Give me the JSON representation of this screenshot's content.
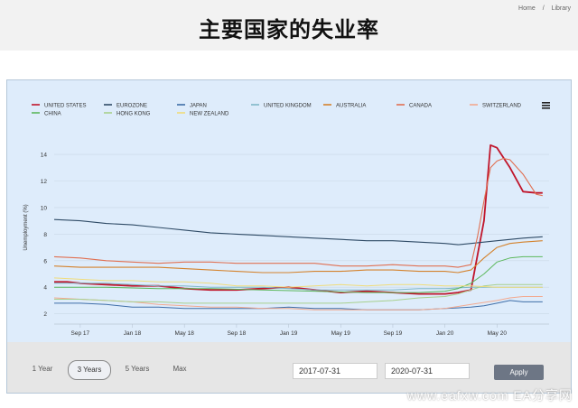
{
  "breadcrumb": {
    "home": "Home",
    "separator": "/",
    "library": "Library"
  },
  "page_title": "主要国家的失业率",
  "controls": {
    "ranges": [
      "1 Year",
      "3 Years",
      "5 Years",
      "Max"
    ],
    "active_range": "3 Years",
    "from_date": "2017-07-31",
    "to_date": "2020-07-31",
    "apply_label": "Apply"
  },
  "watermark": "www.eafxw.com EA分享网",
  "chart_data": {
    "type": "line",
    "title": "",
    "ylabel": "Unemployment (%)",
    "xlabel": "",
    "ylim": [
      1.5,
      15.5
    ],
    "yticks": [
      2,
      4,
      6,
      8,
      10,
      12,
      14
    ],
    "grid": "horizontal",
    "legend_position": "top",
    "xticks": [
      {
        "label": "Sep 17",
        "x": 2
      },
      {
        "label": "Jan 18",
        "x": 6
      },
      {
        "label": "May 18",
        "x": 10
      },
      {
        "label": "Sep 18",
        "x": 14
      },
      {
        "label": "Jan 19",
        "x": 18
      },
      {
        "label": "May 19",
        "x": 22
      },
      {
        "label": "Sep 19",
        "x": 26
      },
      {
        "label": "Jan 20",
        "x": 30
      },
      {
        "label": "May 20",
        "x": 34
      }
    ],
    "xlim": [
      0,
      38
    ],
    "series": [
      {
        "name": "UNITED STATES",
        "color": "#c0152b",
        "width": 1.8,
        "points": [
          [
            0,
            4.4
          ],
          [
            1,
            4.4
          ],
          [
            2,
            4.3
          ],
          [
            4,
            4.2
          ],
          [
            6,
            4.1
          ],
          [
            8,
            4.1
          ],
          [
            10,
            3.9
          ],
          [
            12,
            3.8
          ],
          [
            14,
            3.8
          ],
          [
            16,
            3.9
          ],
          [
            18,
            4.0
          ],
          [
            20,
            3.8
          ],
          [
            22,
            3.6
          ],
          [
            24,
            3.7
          ],
          [
            26,
            3.6
          ],
          [
            28,
            3.5
          ],
          [
            30,
            3.5
          ],
          [
            31,
            3.6
          ],
          [
            32,
            3.8
          ],
          [
            33,
            9.0
          ],
          [
            33.5,
            14.7
          ],
          [
            34,
            14.5
          ],
          [
            35,
            13.0
          ],
          [
            36,
            11.2
          ],
          [
            37,
            11.1
          ],
          [
            37.5,
            11.1
          ]
        ]
      },
      {
        "name": "EUROZONE",
        "color": "#2f4b66",
        "width": 1.1,
        "points": [
          [
            0,
            9.1
          ],
          [
            2,
            9.0
          ],
          [
            4,
            8.8
          ],
          [
            6,
            8.7
          ],
          [
            8,
            8.5
          ],
          [
            10,
            8.3
          ],
          [
            12,
            8.1
          ],
          [
            14,
            8.0
          ],
          [
            16,
            7.9
          ],
          [
            18,
            7.8
          ],
          [
            20,
            7.7
          ],
          [
            22,
            7.6
          ],
          [
            24,
            7.5
          ],
          [
            26,
            7.5
          ],
          [
            28,
            7.4
          ],
          [
            30,
            7.3
          ],
          [
            31,
            7.2
          ],
          [
            32,
            7.3
          ],
          [
            34,
            7.5
          ],
          [
            36,
            7.7
          ],
          [
            37.5,
            7.8
          ]
        ]
      },
      {
        "name": "JAPAN",
        "color": "#3f6ea8",
        "width": 1.0,
        "points": [
          [
            0,
            2.8
          ],
          [
            2,
            2.8
          ],
          [
            4,
            2.7
          ],
          [
            6,
            2.5
          ],
          [
            8,
            2.5
          ],
          [
            10,
            2.4
          ],
          [
            12,
            2.4
          ],
          [
            14,
            2.4
          ],
          [
            16,
            2.4
          ],
          [
            18,
            2.5
          ],
          [
            20,
            2.4
          ],
          [
            22,
            2.4
          ],
          [
            24,
            2.3
          ],
          [
            26,
            2.3
          ],
          [
            28,
            2.3
          ],
          [
            30,
            2.4
          ],
          [
            32,
            2.5
          ],
          [
            33,
            2.6
          ],
          [
            34,
            2.8
          ],
          [
            35,
            3.0
          ],
          [
            36,
            2.9
          ],
          [
            37.5,
            2.9
          ]
        ]
      },
      {
        "name": "UNITED KINGDOM",
        "color": "#7fb8c8",
        "width": 1.0,
        "points": [
          [
            0,
            4.3
          ],
          [
            2,
            4.3
          ],
          [
            4,
            4.3
          ],
          [
            6,
            4.2
          ],
          [
            8,
            4.1
          ],
          [
            10,
            4.1
          ],
          [
            12,
            4.0
          ],
          [
            14,
            4.0
          ],
          [
            16,
            4.0
          ],
          [
            18,
            3.9
          ],
          [
            20,
            3.8
          ],
          [
            22,
            3.8
          ],
          [
            24,
            3.8
          ],
          [
            26,
            3.8
          ],
          [
            28,
            3.9
          ],
          [
            30,
            3.9
          ],
          [
            32,
            4.0
          ],
          [
            34,
            4.0
          ],
          [
            36,
            4.0
          ],
          [
            37.5,
            4.0
          ]
        ]
      },
      {
        "name": "AUSTRALIA",
        "color": "#d4822c",
        "width": 1.1,
        "points": [
          [
            0,
            5.6
          ],
          [
            2,
            5.5
          ],
          [
            4,
            5.5
          ],
          [
            6,
            5.5
          ],
          [
            8,
            5.5
          ],
          [
            10,
            5.4
          ],
          [
            12,
            5.3
          ],
          [
            14,
            5.2
          ],
          [
            16,
            5.1
          ],
          [
            18,
            5.1
          ],
          [
            20,
            5.2
          ],
          [
            22,
            5.2
          ],
          [
            24,
            5.3
          ],
          [
            26,
            5.3
          ],
          [
            28,
            5.2
          ],
          [
            30,
            5.2
          ],
          [
            31,
            5.1
          ],
          [
            32,
            5.3
          ],
          [
            33,
            6.2
          ],
          [
            34,
            7.0
          ],
          [
            35,
            7.3
          ],
          [
            36,
            7.4
          ],
          [
            37.5,
            7.5
          ]
        ]
      },
      {
        "name": "CANADA",
        "color": "#e07052",
        "width": 1.1,
        "points": [
          [
            0,
            6.3
          ],
          [
            2,
            6.2
          ],
          [
            4,
            6.0
          ],
          [
            6,
            5.9
          ],
          [
            8,
            5.8
          ],
          [
            10,
            5.9
          ],
          [
            12,
            5.9
          ],
          [
            14,
            5.8
          ],
          [
            16,
            5.8
          ],
          [
            18,
            5.8
          ],
          [
            20,
            5.8
          ],
          [
            22,
            5.6
          ],
          [
            24,
            5.6
          ],
          [
            26,
            5.7
          ],
          [
            28,
            5.6
          ],
          [
            30,
            5.6
          ],
          [
            31,
            5.5
          ],
          [
            32,
            5.7
          ],
          [
            32.5,
            7.8
          ],
          [
            33,
            10.5
          ],
          [
            33.5,
            13.0
          ],
          [
            34,
            13.5
          ],
          [
            34.5,
            13.7
          ],
          [
            35,
            13.6
          ],
          [
            36,
            12.5
          ],
          [
            37,
            11.0
          ],
          [
            37.5,
            10.9
          ]
        ]
      },
      {
        "name": "SWITZERLAND",
        "color": "#f2a98f",
        "width": 1.0,
        "points": [
          [
            0,
            3.2
          ],
          [
            2,
            3.1
          ],
          [
            4,
            3.0
          ],
          [
            6,
            2.9
          ],
          [
            8,
            2.7
          ],
          [
            10,
            2.6
          ],
          [
            12,
            2.5
          ],
          [
            14,
            2.5
          ],
          [
            16,
            2.4
          ],
          [
            18,
            2.4
          ],
          [
            20,
            2.3
          ],
          [
            22,
            2.3
          ],
          [
            24,
            2.3
          ],
          [
            26,
            2.3
          ],
          [
            28,
            2.3
          ],
          [
            30,
            2.4
          ],
          [
            32,
            2.7
          ],
          [
            34,
            3.0
          ],
          [
            35,
            3.2
          ],
          [
            36,
            3.3
          ],
          [
            37.5,
            3.3
          ]
        ]
      },
      {
        "name": "CHINA",
        "color": "#5cb85c",
        "width": 1.0,
        "points": [
          [
            0,
            4.0
          ],
          [
            4,
            4.0
          ],
          [
            8,
            3.9
          ],
          [
            12,
            3.9
          ],
          [
            16,
            3.8
          ],
          [
            20,
            3.7
          ],
          [
            24,
            3.6
          ],
          [
            28,
            3.6
          ],
          [
            30,
            3.7
          ],
          [
            31,
            3.9
          ],
          [
            32,
            4.3
          ],
          [
            33,
            5.0
          ],
          [
            34,
            5.9
          ],
          [
            35,
            6.2
          ],
          [
            36,
            6.3
          ],
          [
            37.5,
            6.3
          ]
        ]
      },
      {
        "name": "HONG KONG",
        "color": "#a8d08d",
        "width": 1.0,
        "points": [
          [
            0,
            3.1
          ],
          [
            2,
            3.1
          ],
          [
            4,
            3.0
          ],
          [
            6,
            2.9
          ],
          [
            8,
            2.9
          ],
          [
            10,
            2.8
          ],
          [
            12,
            2.8
          ],
          [
            14,
            2.8
          ],
          [
            16,
            2.8
          ],
          [
            18,
            2.8
          ],
          [
            20,
            2.8
          ],
          [
            22,
            2.8
          ],
          [
            24,
            2.9
          ],
          [
            26,
            3.0
          ],
          [
            28,
            3.2
          ],
          [
            30,
            3.3
          ],
          [
            31,
            3.5
          ],
          [
            32,
            3.8
          ],
          [
            33,
            4.1
          ],
          [
            34,
            4.2
          ],
          [
            35,
            4.2
          ],
          [
            37.5,
            4.2
          ]
        ]
      },
      {
        "name": "NEW ZEALAND",
        "color": "#f0dc7a",
        "width": 1.0,
        "points": [
          [
            0,
            4.7
          ],
          [
            2,
            4.6
          ],
          [
            4,
            4.5
          ],
          [
            6,
            4.5
          ],
          [
            8,
            4.4
          ],
          [
            10,
            4.4
          ],
          [
            12,
            4.3
          ],
          [
            14,
            4.1
          ],
          [
            16,
            4.1
          ],
          [
            18,
            4.0
          ],
          [
            20,
            4.1
          ],
          [
            22,
            4.2
          ],
          [
            24,
            4.1
          ],
          [
            26,
            4.2
          ],
          [
            28,
            4.2
          ],
          [
            30,
            4.1
          ],
          [
            32,
            4.1
          ],
          [
            34,
            4.0
          ],
          [
            36,
            4.0
          ],
          [
            37.5,
            4.0
          ]
        ]
      }
    ]
  }
}
